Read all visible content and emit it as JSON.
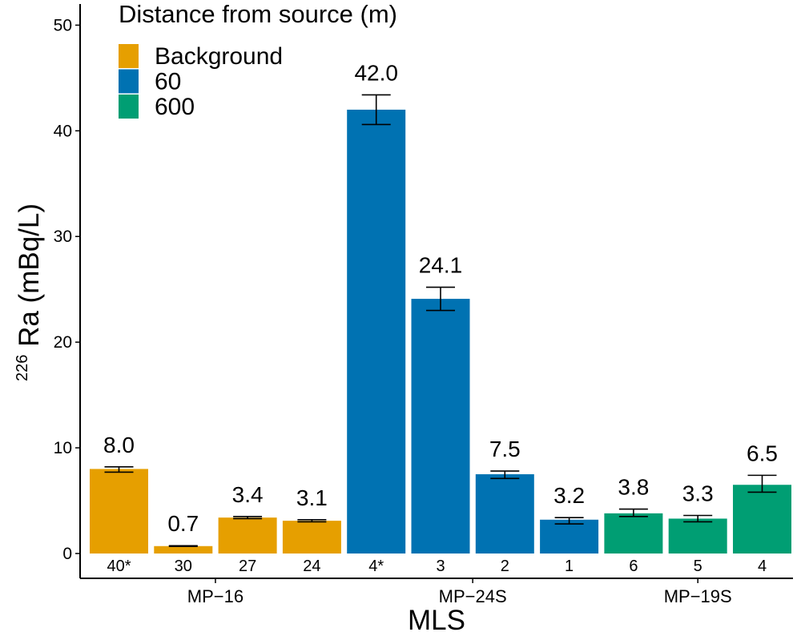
{
  "chart_data": {
    "type": "bar",
    "xlabel": "MLS",
    "ylabel_superscript": "226",
    "ylabel": "Ra (mBq/L)",
    "ylim": [
      0,
      52
    ],
    "yticks": [
      0,
      10,
      20,
      30,
      40,
      50
    ],
    "legend": {
      "title": "Distance from source (m)",
      "position": "top-left",
      "entries": [
        {
          "name": "Background",
          "color": "#E69F00"
        },
        {
          "name": "60",
          "color": "#0072B2"
        },
        {
          "name": "600",
          "color": "#009E73"
        }
      ]
    },
    "groups": [
      "MP−16",
      "MP−24S",
      "MP−19S"
    ],
    "bars": [
      {
        "group": "MP−16",
        "depth": "40*",
        "value": 8.0,
        "label": "8.0",
        "err_low": 7.7,
        "err_high": 8.2,
        "series": "Background"
      },
      {
        "group": "MP−16",
        "depth": "30",
        "value": 0.7,
        "label": "0.7",
        "err_low": 0.68,
        "err_high": 0.74,
        "series": "Background"
      },
      {
        "group": "MP−16",
        "depth": "27",
        "value": 3.4,
        "label": "3.4",
        "err_low": 3.3,
        "err_high": 3.5,
        "series": "Background"
      },
      {
        "group": "MP−16",
        "depth": "24",
        "value": 3.1,
        "label": "3.1",
        "err_low": 3.0,
        "err_high": 3.2,
        "series": "Background"
      },
      {
        "group": "MP−24S",
        "depth": "4*",
        "value": 42.0,
        "label": "42.0",
        "err_low": 40.6,
        "err_high": 43.4,
        "series": "60"
      },
      {
        "group": "MP−24S",
        "depth": "3",
        "value": 24.1,
        "label": "24.1",
        "err_low": 23.0,
        "err_high": 25.2,
        "series": "60"
      },
      {
        "group": "MP−24S",
        "depth": "2",
        "value": 7.5,
        "label": "7.5",
        "err_low": 7.1,
        "err_high": 7.8,
        "series": "60"
      },
      {
        "group": "MP−24S",
        "depth": "1",
        "value": 3.2,
        "label": "3.2",
        "err_low": 2.8,
        "err_high": 3.4,
        "series": "60"
      },
      {
        "group": "MP−19S",
        "depth": "6",
        "value": 3.8,
        "label": "3.8",
        "err_low": 3.5,
        "err_high": 4.2,
        "series": "600"
      },
      {
        "group": "MP−19S",
        "depth": "5",
        "value": 3.3,
        "label": "3.3",
        "err_low": 3.0,
        "err_high": 3.6,
        "series": "600"
      },
      {
        "group": "MP−19S",
        "depth": "4",
        "value": 6.5,
        "label": "6.5",
        "err_low": 5.8,
        "err_high": 7.4,
        "series": "600"
      }
    ]
  }
}
